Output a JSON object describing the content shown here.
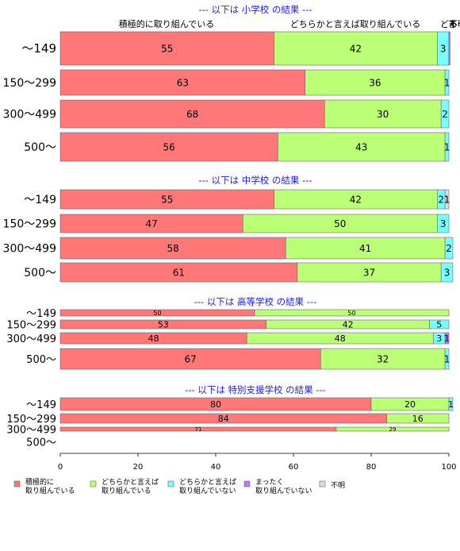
{
  "chart_data": {
    "type": "bar",
    "orientation": "horizontal-stacked",
    "xlim": [
      0,
      100
    ],
    "xticks": [
      "0",
      "20",
      "40",
      "60",
      "80",
      "100"
    ],
    "legend_position": "bottom",
    "series": [
      {
        "name": "積極的に\n取り組んでいる",
        "color": "#ff7777"
      },
      {
        "name": "どちらかと言えば\n取り組んでいる",
        "color": "#bbff77"
      },
      {
        "name": "どちらかと言えば\n取り組んでいない",
        "color": "#77ffff"
      },
      {
        "name": "まったく\n取り組んでいない",
        "color": "#bb77ff"
      },
      {
        "name": "不明",
        "color": "#dddddd"
      }
    ],
    "header_labels": [
      {
        "text": "積極的に取り組んでいる",
        "series": 0
      },
      {
        "text": "どちらかと言えば取り組んでいる",
        "series": 1
      },
      {
        "text": "どちらかと言えば取り組んでいない",
        "series": 2
      },
      {
        "text": "まったく取り組んでいない",
        "series": 3
      },
      {
        "text": "不明",
        "series": 4
      }
    ],
    "panels": [
      {
        "title": "--- 以下は 小学校 の結果 ---",
        "categories": [
          "〜149",
          "150〜299",
          "300〜499",
          "500〜"
        ],
        "values": [
          [
            55,
            42,
            3,
            0.3,
            0
          ],
          [
            63,
            36,
            1,
            0,
            0
          ],
          [
            68,
            30,
            2,
            0,
            0
          ],
          [
            56,
            43,
            1,
            0,
            0
          ]
        ],
        "labels": [
          [
            "55",
            "42",
            "3",
            "",
            ""
          ],
          [
            "63",
            "36",
            "1",
            "",
            ""
          ],
          [
            "68",
            "30",
            "2",
            "",
            ""
          ],
          [
            "56",
            "43",
            "1",
            "",
            ""
          ]
        ]
      },
      {
        "title": "--- 以下は 中学校 の結果 ---",
        "categories": [
          "〜149",
          "150〜299",
          "300〜499",
          "500〜"
        ],
        "values": [
          [
            55,
            42,
            2,
            0,
            1
          ],
          [
            47,
            50,
            3,
            0,
            0
          ],
          [
            58,
            41,
            2,
            0,
            0
          ],
          [
            61,
            37,
            3,
            0,
            0
          ]
        ],
        "labels": [
          [
            "55",
            "42",
            "2",
            "",
            "1"
          ],
          [
            "47",
            "50",
            "3",
            "",
            ""
          ],
          [
            "58",
            "41",
            "2",
            "",
            ""
          ],
          [
            "61",
            "37",
            "3",
            "",
            ""
          ]
        ]
      },
      {
        "title": "--- 以下は 高等学校 の結果 ---",
        "categories": [
          "〜149",
          "150〜299",
          "300〜499",
          "500〜"
        ],
        "values": [
          [
            50,
            50,
            0,
            0,
            0
          ],
          [
            53,
            42,
            5,
            0,
            0
          ],
          [
            48,
            48,
            3,
            1,
            0
          ],
          [
            67,
            32,
            1,
            0,
            0
          ]
        ],
        "labels": [
          [
            "50",
            "50",
            "",
            "",
            ""
          ],
          [
            "53",
            "42",
            "5",
            "",
            ""
          ],
          [
            "48",
            "48",
            "3",
            "1",
            ""
          ],
          [
            "67",
            "32",
            "1",
            "",
            ""
          ]
        ]
      },
      {
        "title": "--- 以下は 特別支援学校 の結果 ---",
        "categories": [
          "〜149",
          "150〜299",
          "300〜499",
          "500〜"
        ],
        "values": [
          [
            80,
            20,
            1,
            0,
            0
          ],
          [
            84,
            16,
            0,
            0,
            0
          ],
          [
            71,
            29,
            0,
            0,
            0
          ],
          [
            0,
            0,
            0,
            0,
            0
          ]
        ],
        "labels": [
          [
            "80",
            "20",
            "1",
            "",
            ""
          ],
          [
            "84",
            "16",
            "",
            "",
            ""
          ],
          [
            "71",
            "29",
            "",
            "",
            ""
          ],
          [
            "",
            "",
            "",
            "",
            ""
          ]
        ]
      }
    ]
  }
}
